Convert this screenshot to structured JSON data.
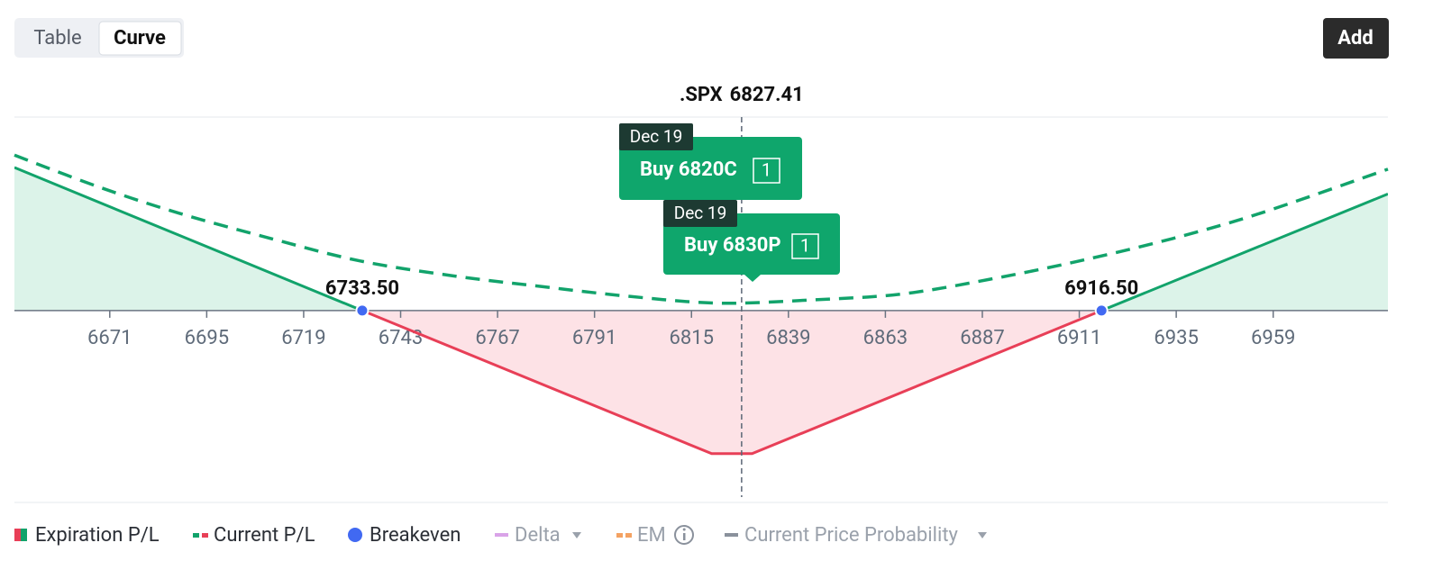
{
  "toolbar": {
    "tabs": [
      "Table",
      "Curve"
    ],
    "active_tab": 1,
    "add_button": "Add"
  },
  "chart_data": {
    "type": "line",
    "xlim": [
      6647.4,
      6987.4
    ],
    "xticks": [
      6671,
      6695,
      6719,
      6743,
      6767,
      6791,
      6815,
      6839,
      6863,
      6887,
      6911,
      6935,
      6959
    ],
    "ylim": [
      -11600,
      11700
    ],
    "current_price": {
      "name": ".SPX",
      "value": 6827.41
    },
    "series": [
      {
        "name": "Expiration P/L",
        "color": "#12a36b",
        "negative_color": "#e83f57",
        "style": "solid",
        "x": [
          6647.4,
          6733.5,
          6820,
          6830,
          6916.5,
          6987.4
        ],
        "values": [
          8650,
          0,
          -8650,
          -8650,
          0,
          7050
        ]
      },
      {
        "name": "Current P/L",
        "color": "#12a36b",
        "style": "dashed",
        "x": [
          6647.4,
          6668,
          6688,
          6711,
          6733,
          6756,
          6778,
          6800,
          6822,
          6845,
          6867,
          6889,
          6911,
          6934,
          6956,
          6987.4
        ],
        "values": [
          9400,
          7500,
          5900,
          4350,
          3000,
          2100,
          1450,
          850,
          450,
          650,
          1000,
          1900,
          3000,
          4350,
          5900,
          8550
        ]
      }
    ],
    "breakevens": {
      "name": "Breakeven",
      "color": "#4169f2",
      "x": [
        6733.5,
        6916.5
      ],
      "value_labels": [
        "6733.50",
        "6916.50"
      ]
    },
    "positions": [
      {
        "date": "Dec 19",
        "label": "Buy 6820C",
        "quantity": 1
      },
      {
        "date": "Dec 19",
        "label": "Buy 6830P",
        "quantity": 1
      }
    ],
    "extra_legend": [
      "Delta",
      "EM",
      "Current Price Probability"
    ]
  }
}
